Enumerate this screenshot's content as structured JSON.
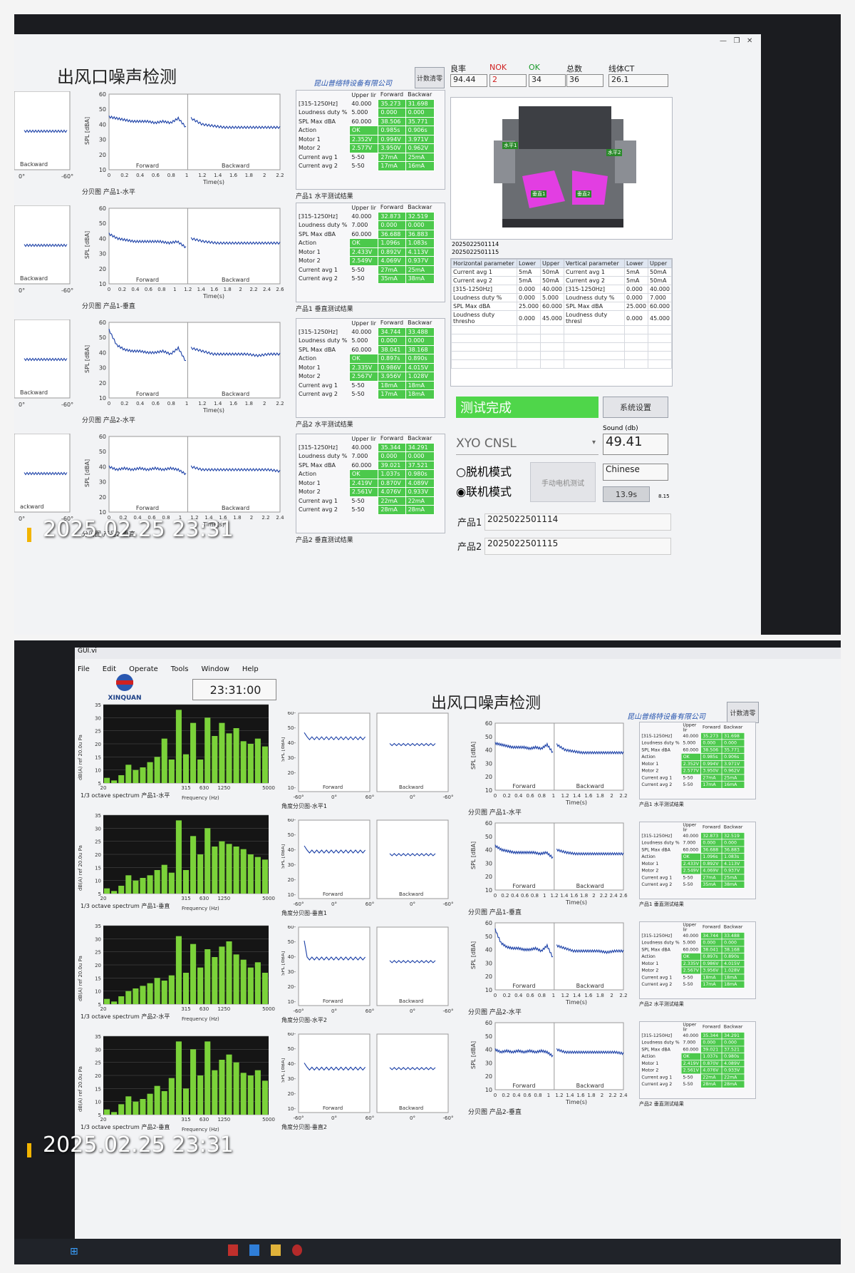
{
  "header": {
    "title": "出风口噪声检测",
    "company": "昆山普络特设备有限公司",
    "clear_count_btn": "计数清零"
  },
  "stats": {
    "labels": [
      "良率",
      "NOK",
      "OK",
      "总数",
      "线体CT"
    ],
    "values": [
      "94.44",
      "2",
      "34",
      "36",
      "26.1"
    ],
    "label_colors": [
      "#222222",
      "#d02020",
      "#1a9a2a",
      "#222222",
      "#222222"
    ]
  },
  "results": [
    {
      "caption": "产品1 水平测试结果",
      "rows": [
        [
          "[315-1250Hz]",
          "40.000",
          "35.273",
          "31.698"
        ],
        [
          "Loudness duty %",
          "5.000",
          "0.000",
          "0.000"
        ],
        [
          "SPL Max dBA",
          "60.000",
          "38.506",
          "35.771"
        ],
        [
          "Action",
          "OK",
          "0.985s",
          "0.906s"
        ],
        [
          "Motor 1",
          "2.352V",
          "0.994V",
          "3.971V"
        ],
        [
          "Motor 2",
          "2.577V",
          "3.950V",
          "0.962V"
        ],
        [
          "Current avg 1",
          "5-50",
          "27mA",
          "25mA"
        ],
        [
          "Current avg 2",
          "5-50",
          "17mA",
          "16mA"
        ]
      ]
    },
    {
      "caption": "产品1 垂直测试结果",
      "rows": [
        [
          "[315-1250Hz]",
          "40.000",
          "32.873",
          "32.519"
        ],
        [
          "Loudness duty %",
          "7.000",
          "0.000",
          "0.000"
        ],
        [
          "SPL Max dBA",
          "60.000",
          "36.688",
          "36.883"
        ],
        [
          "Action",
          "OK",
          "1.096s",
          "1.083s"
        ],
        [
          "Motor 1",
          "2.433V",
          "0.892V",
          "4.113V"
        ],
        [
          "Motor 2",
          "2.549V",
          "4.069V",
          "0.937V"
        ],
        [
          "Current avg 1",
          "5-50",
          "27mA",
          "25mA"
        ],
        [
          "Current avg 2",
          "5-50",
          "35mA",
          "38mA"
        ]
      ]
    },
    {
      "caption": "产品2 水平测试结果",
      "rows": [
        [
          "[315-1250Hz]",
          "40.000",
          "34.744",
          "33.488"
        ],
        [
          "Loudness duty %",
          "5.000",
          "0.000",
          "0.000"
        ],
        [
          "SPL Max dBA",
          "60.000",
          "38.041",
          "38.168"
        ],
        [
          "Action",
          "OK",
          "0.897s",
          "0.890s"
        ],
        [
          "Motor 1",
          "2.335V",
          "0.986V",
          "4.015V"
        ],
        [
          "Motor 2",
          "2.567V",
          "3.956V",
          "1.028V"
        ],
        [
          "Current avg 1",
          "5-50",
          "18mA",
          "18mA"
        ],
        [
          "Current avg 2",
          "5-50",
          "17mA",
          "18mA"
        ]
      ]
    },
    {
      "caption": "产品2 垂直测试结果",
      "rows": [
        [
          "[315-1250Hz]",
          "40.000",
          "35.344",
          "34.291"
        ],
        [
          "Loudness duty %",
          "7.000",
          "0.000",
          "0.000"
        ],
        [
          "SPL Max dBA",
          "60.000",
          "39.021",
          "37.521"
        ],
        [
          "Action",
          "OK",
          "1.037s",
          "0.980s"
        ],
        [
          "Motor 1",
          "2.419V",
          "0.870V",
          "4.089V"
        ],
        [
          "Motor 2",
          "2.561V",
          "4.076V",
          "0.933V"
        ],
        [
          "Current avg 1",
          "5-50",
          "22mA",
          "22mA"
        ],
        [
          "Current avg 2",
          "5-50",
          "28mA",
          "28mA"
        ]
      ]
    }
  ],
  "result_headers": [
    "Upper lir",
    "Forward",
    "Backwar"
  ],
  "time_plots": {
    "captions": [
      "分贝图 产品1-水平",
      "分贝图 产品1-垂直",
      "分贝图 产品2-水平",
      "分贝图 产品2-垂直"
    ],
    "ylabel": "SPL [dBA]",
    "xlabel": "Time(s)",
    "forward": "Forward",
    "backward": "Backward"
  },
  "left_strip": {
    "backward": "Backward",
    "ticks": [
      "0°",
      "-60°"
    ],
    "partial": "ackward"
  },
  "product_image": {
    "labels": [
      "水平1",
      "水平2",
      "垂直1",
      "垂直2"
    ],
    "serials": [
      "2025022501114",
      "2025022501115"
    ]
  },
  "param_table": {
    "headers": [
      "Horizontal parameter",
      "Lower",
      "Upper",
      "Vertical parameter",
      "Lower",
      "Upper"
    ],
    "rows": [
      [
        "Current avg 1",
        "5mA",
        "50mA",
        "Current avg 1",
        "5mA",
        "50mA"
      ],
      [
        "Current avg 2",
        "5mA",
        "50mA",
        "Current avg 2",
        "5mA",
        "50mA"
      ],
      [
        "[315-1250Hz]",
        "0.000",
        "40.000",
        "[315-1250Hz]",
        "0.000",
        "40.000"
      ],
      [
        "Loudness duty %",
        "0.000",
        "5.000",
        "Loudness duty %",
        "0.000",
        "7.000"
      ],
      [
        "SPL Max dBA",
        "25.000",
        "60.000",
        "SPL Max dBA",
        "25.000",
        "60.000"
      ],
      [
        "Loudness duty thresho",
        "0.000",
        "45.000",
        "Loudness duty thresl",
        "0.000",
        "45.000"
      ]
    ]
  },
  "status": {
    "test_complete": "测试完成",
    "settings_btn": "系统设置",
    "sound_label": "Sound (db)",
    "sound_value": "49.41",
    "device_select": "XYO CNSL",
    "mode_offline": "脱机模式",
    "mode_online": "联机模式",
    "manual_test_btn": "手动电机测试",
    "language": "Chinese",
    "cycle_time": "13.9s",
    "version": "8.15",
    "product1_label": "产品1",
    "product1_value": "2025022501114",
    "product2_label": "产品2",
    "product2_value": "2025022501115"
  },
  "photo_stamps": [
    "2025.02.25 23:31",
    "2025.02.25 23:31"
  ],
  "window2": {
    "window_title": "GUI.vi",
    "menu": [
      "File",
      "Edit",
      "Operate",
      "Tools",
      "Window",
      "Help"
    ],
    "logo_text": "XINQUAN",
    "clock": "23:31:00",
    "octave_ylabel": "dB(A) ref 20.0u Pa",
    "octave_xlabel": "Frequency (Hz)",
    "octave_captions": [
      "1/3 octave spectrum 产品1-水平",
      "1/3 octave spectrum 产品1-垂直",
      "1/3 octave spectrum 产品2-水平",
      "1/3 octave spectrum 产品2-垂直"
    ],
    "octave_freq_ticks": [
      "20",
      "315",
      "630",
      "1250",
      "5000"
    ],
    "angle_captions": [
      "角度分贝图-水平1",
      "角度分贝图-垂直1",
      "角度分贝图-水平2",
      "角度分贝图-垂直2"
    ],
    "angle_ticks": [
      "-60°",
      "0°",
      "60°",
      "0°",
      "-60°"
    ]
  },
  "chart_data": [
    {
      "type": "line",
      "title": "分贝图 产品1-水平",
      "xlabel": "Time(s)",
      "ylabel": "SPL [dBA]",
      "ylim": [
        10,
        60
      ],
      "xlim": [
        0,
        2.2
      ],
      "series": [
        {
          "name": "Forward",
          "values": [
            45,
            44,
            43,
            42,
            42,
            42,
            41,
            42,
            41,
            44,
            38
          ]
        },
        {
          "name": "Backward",
          "values": [
            44,
            40,
            39,
            38,
            38,
            38,
            38,
            38,
            38
          ]
        }
      ]
    },
    {
      "type": "line",
      "title": "分贝图 产品1-垂直",
      "xlabel": "Time(s)",
      "ylabel": "SPL [dBA]",
      "ylim": [
        10,
        60
      ],
      "xlim": [
        0,
        2.6
      ],
      "series": [
        {
          "name": "Forward",
          "values": [
            43,
            40,
            39,
            38,
            38,
            38,
            38,
            37,
            38,
            34
          ]
        },
        {
          "name": "Backward",
          "values": [
            40,
            38,
            37,
            37,
            37,
            37,
            37,
            37
          ]
        }
      ]
    },
    {
      "type": "line",
      "title": "分贝图 产品2-水平",
      "xlabel": "Time(s)",
      "ylabel": "SPL [dBA]",
      "ylim": [
        10,
        60
      ],
      "xlim": [
        0,
        2.2
      ],
      "series": [
        {
          "name": "Forward",
          "values": [
            55,
            45,
            42,
            41,
            41,
            40,
            40,
            41,
            39,
            43,
            34
          ]
        },
        {
          "name": "Backward",
          "values": [
            43,
            41,
            39,
            39,
            39,
            39,
            38,
            39,
            39
          ]
        }
      ]
    },
    {
      "type": "line",
      "title": "分贝图 产品2-垂直",
      "xlabel": "Time(s)",
      "ylabel": "SPL [dBA]",
      "ylim": [
        10,
        60
      ],
      "xlim": [
        0,
        2.4
      ],
      "series": [
        {
          "name": "Forward",
          "values": [
            40,
            38,
            39,
            38,
            39,
            38,
            39,
            38,
            39,
            38,
            35
          ]
        },
        {
          "name": "Backward",
          "values": [
            40,
            38,
            38,
            38,
            38,
            38,
            38,
            38,
            37
          ]
        }
      ]
    },
    {
      "type": "bar",
      "title": "1/3 octave spectrum 产品1-水平",
      "xlabel": "Frequency (Hz)",
      "ylabel": "dB(A) ref 20.0u Pa",
      "ylim": [
        5,
        35
      ],
      "values": [
        7,
        6,
        8,
        12,
        10,
        11,
        13,
        15,
        22,
        14,
        33,
        16,
        28,
        14,
        30,
        23,
        28,
        24,
        26,
        21,
        20,
        22,
        19
      ]
    },
    {
      "type": "bar",
      "title": "1/3 octave spectrum 产品1-垂直",
      "xlabel": "Frequency (Hz)",
      "ylabel": "dB(A) ref 20.0u Pa",
      "ylim": [
        5,
        35
      ],
      "values": [
        7,
        6,
        8,
        12,
        10,
        11,
        12,
        14,
        16,
        13,
        33,
        14,
        27,
        20,
        30,
        23,
        25,
        24,
        23,
        22,
        20,
        19,
        18
      ]
    },
    {
      "type": "bar",
      "title": "1/3 octave spectrum 产品2-水平",
      "xlabel": "Frequency (Hz)",
      "ylabel": "dB(A) ref 20.0u Pa",
      "ylim": [
        5,
        35
      ],
      "values": [
        7,
        6,
        8,
        10,
        11,
        12,
        13,
        15,
        14,
        16,
        31,
        17,
        28,
        19,
        26,
        23,
        27,
        29,
        24,
        22,
        19,
        21,
        17
      ]
    },
    {
      "type": "bar",
      "title": "1/3 octave spectrum 产品2-垂直",
      "xlabel": "Frequency (Hz)",
      "ylabel": "dB(A) ref 20.0u Pa",
      "ylim": [
        5,
        35
      ],
      "values": [
        7,
        6,
        9,
        12,
        10,
        11,
        13,
        16,
        14,
        19,
        33,
        15,
        30,
        20,
        33,
        22,
        26,
        28,
        25,
        21,
        20,
        22,
        18
      ]
    }
  ]
}
